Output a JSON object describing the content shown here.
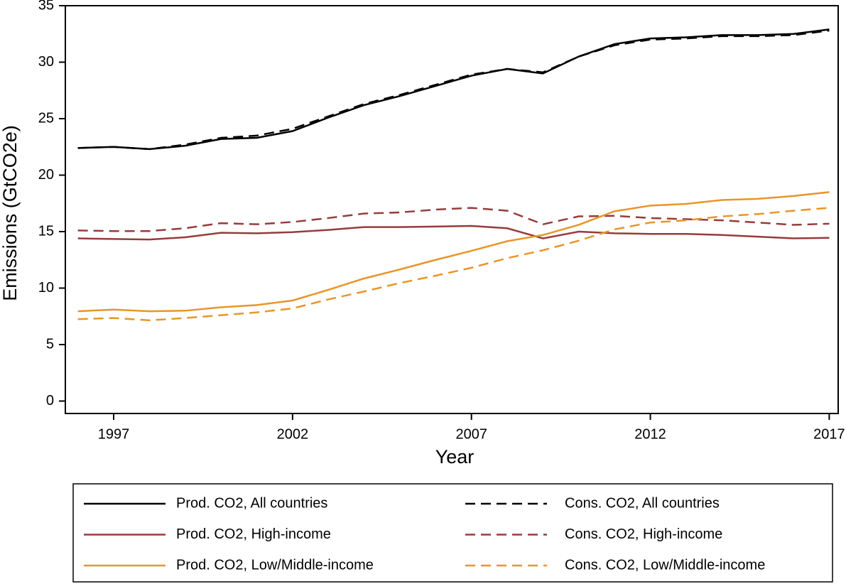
{
  "chart_data": {
    "type": "line",
    "x_label": "Year",
    "y_label": "Emissions (GtCO2e)",
    "x": [
      1996,
      1997,
      1998,
      1999,
      2000,
      2001,
      2002,
      2003,
      2004,
      2005,
      2006,
      2007,
      2008,
      2009,
      2010,
      2011,
      2012,
      2013,
      2014,
      2015,
      2016,
      2017
    ],
    "xlim": [
      1995.65,
      2017.25
    ],
    "xticks": [
      1997,
      2002,
      2007,
      2012,
      2017
    ],
    "ylim": [
      -1.1,
      35
    ],
    "yticks": [
      0,
      5,
      10,
      15,
      20,
      25,
      30,
      35
    ],
    "grid": false,
    "series": [
      {
        "name": "Prod. CO2, All countries",
        "color": "#000000",
        "style": "solid",
        "values": [
          22.4,
          22.5,
          22.3,
          22.6,
          23.2,
          23.3,
          23.9,
          25.1,
          26.2,
          27.0,
          27.9,
          28.8,
          29.4,
          29.0,
          30.5,
          31.6,
          32.1,
          32.2,
          32.4,
          32.4,
          32.5,
          32.9
        ]
      },
      {
        "name": "Cons. CO2, All countries",
        "color": "#000000",
        "style": "dashed",
        "values": [
          22.4,
          22.5,
          22.3,
          22.7,
          23.3,
          23.5,
          24.1,
          25.2,
          26.3,
          27.1,
          28.0,
          28.9,
          29.4,
          29.1,
          30.5,
          31.5,
          32.0,
          32.1,
          32.3,
          32.3,
          32.4,
          32.8
        ]
      },
      {
        "name": "Prod. CO2, High-income",
        "color": "#963c3c",
        "style": "solid",
        "values": [
          14.4,
          14.35,
          14.3,
          14.5,
          14.9,
          14.85,
          14.95,
          15.15,
          15.4,
          15.4,
          15.45,
          15.5,
          15.3,
          14.4,
          15.0,
          14.85,
          14.8,
          14.8,
          14.7,
          14.55,
          14.4,
          14.45
        ]
      },
      {
        "name": "Cons. CO2, High-income",
        "color": "#963c3c",
        "style": "dashed",
        "values": [
          15.1,
          15.05,
          15.05,
          15.3,
          15.75,
          15.65,
          15.85,
          16.2,
          16.6,
          16.7,
          16.95,
          17.1,
          16.85,
          15.65,
          16.35,
          16.4,
          16.2,
          16.1,
          16.0,
          15.8,
          15.6,
          15.7
        ]
      },
      {
        "name": "Prod. CO2, Low/Middle-income",
        "color": "#e8952a",
        "style": "solid",
        "values": [
          7.95,
          8.1,
          7.95,
          8.0,
          8.3,
          8.5,
          8.9,
          9.85,
          10.85,
          11.65,
          12.5,
          13.3,
          14.15,
          14.7,
          15.6,
          16.8,
          17.3,
          17.45,
          17.8,
          17.9,
          18.15,
          18.5
        ]
      },
      {
        "name": "Cons. CO2, Low/Middle-income",
        "color": "#e8952a",
        "style": "dashed",
        "values": [
          7.25,
          7.35,
          7.15,
          7.35,
          7.6,
          7.85,
          8.2,
          9.0,
          9.7,
          10.45,
          11.1,
          11.8,
          12.65,
          13.35,
          14.2,
          15.2,
          15.8,
          16.0,
          16.35,
          16.55,
          16.85,
          17.1
        ]
      }
    ]
  }
}
